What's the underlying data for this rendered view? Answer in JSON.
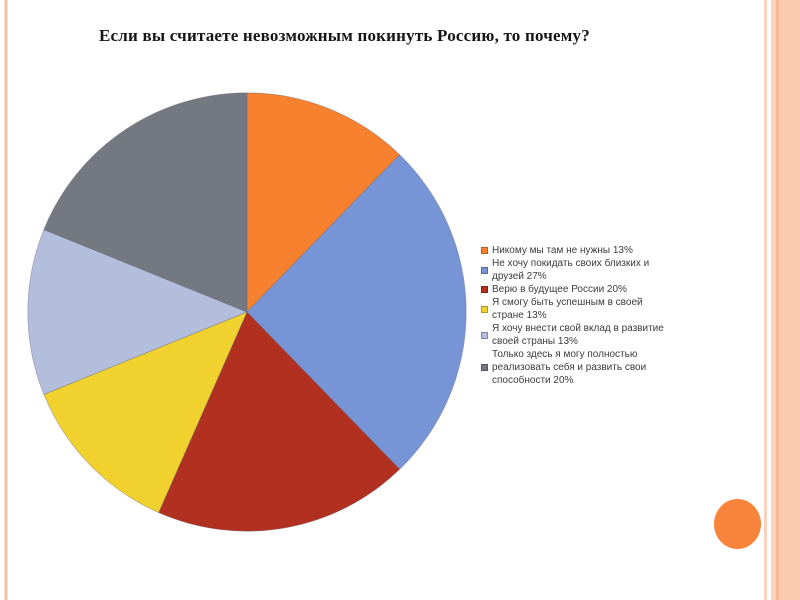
{
  "slide": {
    "title": "Если вы считаете невозможным покинуть Россию, то почему?"
  },
  "chart_data": {
    "type": "pie",
    "title": "Если вы считаете невозможным покинуть Россию, то почему?",
    "labels": [
      "Никому мы там не нужны",
      "Не хочу покидать своих близких и друзей",
      "Верю в будущее России",
      "Я смогу быть успешным в своей стране",
      "Я хочу внести свой вклад в развитие своей страны",
      "Только здесь я могу полностью реализовать себя и развить свои способности"
    ],
    "values": [
      13,
      27,
      20,
      13,
      13,
      20
    ],
    "unit": "%",
    "colors": [
      "#F7812F",
      "#7795D6",
      "#B13020",
      "#F0D12E",
      "#B2BEDC",
      "#747881"
    ],
    "start_angle": "top",
    "direction": "clockwise",
    "legend_position": "right",
    "legend_lines": [
      [
        "Никому мы там не нужны 13%"
      ],
      [
        "Не хочу покидать своих близких и",
        "друзей 27%"
      ],
      [
        "Верю в будущее России 20%"
      ],
      [
        "Я смогу быть успешным в своей",
        "стране 13%"
      ],
      [
        "Я хочу внести свой вклад в развитие",
        "своей страны 13%"
      ],
      [
        "Только здесь я могу полностью",
        "реализовать себя и развить свои",
        "способности 20%"
      ]
    ]
  },
  "decor": {
    "left_stripe_color": "#F2B99C",
    "left_stripe_edge_color": "#FBE3D4",
    "right_stripe_color": "#FBD2BD",
    "right_band_color": "#FBC9AE",
    "right_band_light_color": "#FCD3BC",
    "right_band_edge_color": "#F5B898",
    "accent_circle_color": "#F8843C"
  }
}
